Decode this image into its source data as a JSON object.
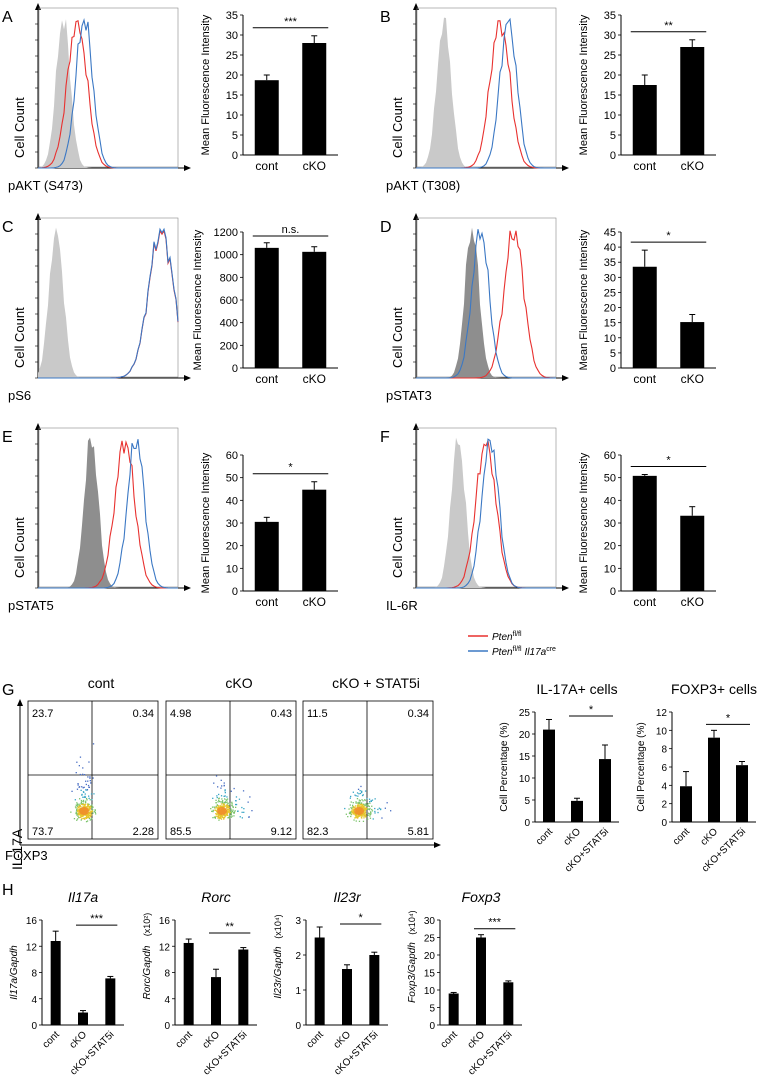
{
  "figure": {
    "panel_letters": [
      "A",
      "B",
      "C",
      "D",
      "E",
      "F",
      "G",
      "H"
    ],
    "legend": {
      "entries": [
        {
          "gene": "Pten",
          "sup": "fl/fl",
          "suffix": "",
          "suffix_sup": "",
          "color": "#e8312f"
        },
        {
          "gene": "Pten",
          "sup": "fl/fl",
          "suffix": "Il17a",
          "suffix_sup": "cre",
          "color": "#3b78c4"
        }
      ]
    }
  },
  "colors": {
    "red": "#e8312f",
    "blue": "#3b78c4",
    "grey": "#c9c9c9",
    "dark_grey": "#8e8e8e",
    "bar": "#000000"
  },
  "histograms": [
    {
      "panel": "A",
      "xlabel": "pAKT (S473)",
      "ylabel": "Cell Count",
      "grey_peak": 18,
      "red_peak": 28,
      "blue_peak": 33,
      "fill": "light"
    },
    {
      "panel": "B",
      "xlabel": "pAKT (T308)",
      "ylabel": "Cell Count",
      "grey_peak": 20,
      "red_peak": 60,
      "blue_peak": 66,
      "fill": "light"
    },
    {
      "panel": "C",
      "xlabel": "pS6",
      "ylabel": "Cell Count",
      "grey_peak": 13,
      "red_peak": 88,
      "blue_peak": 88,
      "fill": "light"
    },
    {
      "panel": "D",
      "xlabel": "pSTAT3",
      "ylabel": "Cell Count",
      "grey_peak": 40,
      "red_peak": 70,
      "blue_peak": 46,
      "fill": "dark"
    },
    {
      "panel": "E",
      "xlabel": "pSTAT5",
      "ylabel": "Cell Count",
      "grey_peak": 38,
      "red_peak": 62,
      "blue_peak": 70,
      "fill": "dark"
    },
    {
      "panel": "F",
      "xlabel": "IL-6R",
      "ylabel": "Cell Count",
      "grey_peak": 30,
      "red_peak": 50,
      "blue_peak": 53,
      "fill": "light"
    }
  ],
  "chart_data": [
    {
      "type": "bar",
      "panel": "A",
      "title": "",
      "ylabel": "Mean Fluorescence Intensity",
      "categories": [
        "cont",
        "cKO"
      ],
      "values": [
        18.7,
        28.0
      ],
      "errors": [
        1.3,
        1.8
      ],
      "ylim": [
        0,
        35
      ],
      "yticks": [
        "0",
        "5",
        "10",
        "15",
        "20",
        "25",
        "30",
        "35"
      ],
      "significance": {
        "label": "***",
        "from": 0,
        "to": 1
      }
    },
    {
      "type": "bar",
      "panel": "B",
      "title": "",
      "ylabel": "Mean Fluorescence Intensity",
      "categories": [
        "cont",
        "cKO"
      ],
      "values": [
        17.5,
        27.0
      ],
      "errors": [
        2.5,
        1.8
      ],
      "ylim": [
        0,
        35
      ],
      "yticks": [
        "0",
        "5",
        "10",
        "15",
        "20",
        "25",
        "30",
        "35"
      ],
      "significance": {
        "label": "**",
        "from": 0,
        "to": 1
      }
    },
    {
      "type": "bar",
      "panel": "C",
      "title": "",
      "ylabel": "Mean Fluorescence Intensity",
      "categories": [
        "cont",
        "cKO"
      ],
      "values": [
        1060,
        1025
      ],
      "errors": [
        45,
        45
      ],
      "ylim": [
        0,
        1200
      ],
      "yticks": [
        "0",
        "200",
        "400",
        "600",
        "800",
        "1000",
        "1200"
      ],
      "significance": {
        "label": "n.s.",
        "from": 0,
        "to": 1
      }
    },
    {
      "type": "bar",
      "panel": "D",
      "title": "",
      "ylabel": "Mean Fluorescence Intensity",
      "categories": [
        "cont",
        "cKO"
      ],
      "values": [
        33.5,
        15.2
      ],
      "errors": [
        5.5,
        2.5
      ],
      "ylim": [
        0,
        45
      ],
      "yticks": [
        "0",
        "5",
        "10",
        "15",
        "20",
        "25",
        "30",
        "35",
        "40",
        "45"
      ],
      "significance": {
        "label": "*",
        "from": 0,
        "to": 1
      }
    },
    {
      "type": "bar",
      "panel": "E",
      "title": "",
      "ylabel": "Mean Fluorescence Intensity",
      "categories": [
        "cont",
        "cKO"
      ],
      "values": [
        30.5,
        44.7
      ],
      "errors": [
        2.0,
        3.5
      ],
      "ylim": [
        0,
        60
      ],
      "yticks": [
        "0",
        "10",
        "20",
        "30",
        "40",
        "50",
        "60"
      ],
      "significance": {
        "label": "*",
        "from": 0,
        "to": 1
      }
    },
    {
      "type": "bar",
      "panel": "F",
      "title": "",
      "ylabel": "Mean Fluorescence Intensity",
      "categories": [
        "cont",
        "cKO"
      ],
      "values": [
        50.8,
        33.2
      ],
      "errors": [
        0.6,
        4.0
      ],
      "ylim": [
        0,
        60
      ],
      "yticks": [
        "0",
        "10",
        "20",
        "30",
        "40",
        "50",
        "60"
      ],
      "significance": {
        "label": "*",
        "from": 0,
        "to": 1
      }
    },
    {
      "type": "scatter",
      "panel": "G",
      "kind": "flow-cytometry-quadrants",
      "xlabel": "FOXP3",
      "ylabel": "IL-17A",
      "plots": [
        {
          "title": "cont",
          "quadrants": {
            "ul": "23.7",
            "ur": "0.34",
            "ll": "73.7",
            "lr": "2.28"
          }
        },
        {
          "title": "cKO",
          "quadrants": {
            "ul": "4.98",
            "ur": "0.43",
            "ll": "85.5",
            "lr": "9.12"
          }
        },
        {
          "title": "cKO + STAT5i",
          "quadrants": {
            "ul": "11.5",
            "ur": "0.34",
            "ll": "82.3",
            "lr": "5.81"
          }
        }
      ]
    },
    {
      "type": "bar",
      "panel": "G",
      "title": "IL-17A+ cells",
      "ylabel": "Cell Percentage (%)",
      "categories": [
        "cont",
        "cKO",
        "cKO+STAT5i"
      ],
      "values": [
        21.0,
        4.8,
        14.3
      ],
      "errors": [
        2.3,
        0.6,
        3.2
      ],
      "ylim": [
        0,
        25
      ],
      "yticks": [
        "0",
        "5",
        "10",
        "15",
        "20",
        "25"
      ],
      "significance": {
        "label": "*",
        "from": 1,
        "to": 2
      }
    },
    {
      "type": "bar",
      "panel": "G",
      "title": "FOXP3+ cells",
      "ylabel": "Cell Percentage (%)",
      "categories": [
        "cont",
        "cKO",
        "cKO+STAT5i"
      ],
      "values": [
        3.9,
        9.2,
        6.2
      ],
      "errors": [
        1.6,
        0.8,
        0.4
      ],
      "ylim": [
        0,
        12
      ],
      "yticks": [
        "0",
        "2",
        "4",
        "6",
        "8",
        "10",
        "12"
      ],
      "significance": {
        "label": "*",
        "from": 1,
        "to": 2
      }
    },
    {
      "type": "bar",
      "panel": "H",
      "title": "Il17a",
      "ylabel": "Il17a/Gapdh",
      "ylabel_sup": "",
      "categories": [
        "cont",
        "cKO",
        "cKO+STAT5i"
      ],
      "values": [
        12.8,
        1.9,
        7.1
      ],
      "errors": [
        1.5,
        0.3,
        0.3
      ],
      "ylim": [
        0,
        16
      ],
      "yticks": [
        "0",
        "4",
        "8",
        "12",
        "16"
      ],
      "significance": {
        "label": "***",
        "from": 1,
        "to": 2
      }
    },
    {
      "type": "bar",
      "panel": "H",
      "title": "Rorc",
      "ylabel": "Rorc/Gapdh",
      "ylabel_sup": "(x10²)",
      "categories": [
        "cont",
        "cKO",
        "cKO+STAT5i"
      ],
      "values": [
        12.5,
        7.3,
        11.5
      ],
      "errors": [
        0.6,
        1.2,
        0.3
      ],
      "ylim": [
        0,
        16
      ],
      "yticks": [
        "0",
        "4",
        "8",
        "12",
        "16"
      ],
      "significance": {
        "label": "**",
        "from": 1,
        "to": 2
      }
    },
    {
      "type": "bar",
      "panel": "H",
      "title": "Il23r",
      "ylabel": "Il23r/Gapdh",
      "ylabel_sup": "(x10⁴)",
      "categories": [
        "cont",
        "cKO",
        "cKO+STAT5i"
      ],
      "values": [
        2.5,
        1.6,
        2.0
      ],
      "errors": [
        0.3,
        0.12,
        0.08
      ],
      "ylim": [
        0,
        3
      ],
      "yticks": [
        "0",
        "1",
        "2",
        "3"
      ],
      "significance": {
        "label": "*",
        "from": 1,
        "to": 2
      }
    },
    {
      "type": "bar",
      "panel": "H",
      "title": "Foxp3",
      "ylabel": "Foxp3/Gapdh",
      "ylabel_sup": "(x10⁴)",
      "categories": [
        "cont",
        "cKO",
        "cKO+STAT5i"
      ],
      "values": [
        9.0,
        25.0,
        12.2
      ],
      "errors": [
        0.3,
        0.8,
        0.4
      ],
      "ylim": [
        0,
        30
      ],
      "yticks": [
        "0",
        "5",
        "10",
        "15",
        "20",
        "25",
        "30"
      ],
      "significance": {
        "label": "***",
        "from": 1,
        "to": 2
      }
    }
  ]
}
